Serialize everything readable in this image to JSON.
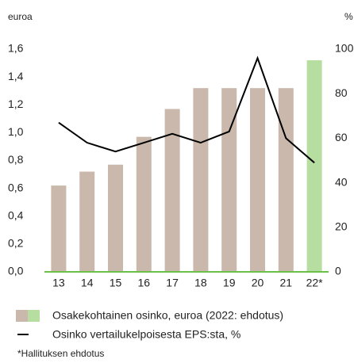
{
  "chart_data": {
    "type": "bar",
    "y_label": "euroa",
    "y2_label": "%",
    "categories": [
      "13",
      "14",
      "15",
      "16",
      "17",
      "18",
      "19",
      "20",
      "21",
      "22*"
    ],
    "series": [
      {
        "name": "Osakekohtainen osinko, euroa (2022: ehdotus)",
        "type": "bar",
        "colors": [
          "#c9b8ab",
          "#c9b8ab",
          "#c9b8ab",
          "#c9b8ab",
          "#c9b8ab",
          "#c9b8ab",
          "#c9b8ab",
          "#c9b8ab",
          "#c9b8ab",
          "#b6dea0"
        ],
        "values": [
          0.62,
          0.72,
          0.77,
          0.97,
          1.17,
          1.32,
          1.32,
          1.32,
          1.32,
          1.52
        ]
      },
      {
        "name": "Osinko vertailukelpoisesta EPS:sta, %",
        "type": "line",
        "axis": "y2",
        "color": "#000000",
        "values": [
          67,
          58,
          54,
          58,
          62,
          58,
          63,
          96,
          60,
          49
        ]
      }
    ],
    "ylim": [
      0,
      1.6
    ],
    "yticks": [
      {
        "value": 0,
        "label": "0,0"
      },
      {
        "value": 0.2,
        "label": "0,2"
      },
      {
        "value": 0.4,
        "label": "0,4"
      },
      {
        "value": 0.6,
        "label": "0,6"
      },
      {
        "value": 0.8,
        "label": "0,8"
      },
      {
        "value": 1.0,
        "label": "1,0"
      },
      {
        "value": 1.2,
        "label": "1,2"
      },
      {
        "value": 1.4,
        "label": "1,4"
      },
      {
        "value": 1.6,
        "label": "1,6"
      }
    ],
    "y2lim": [
      0,
      100
    ],
    "y2ticks": [
      0,
      20,
      40,
      60,
      80,
      100
    ],
    "baseline_color": "#6cc04a",
    "footnote": "*Hallituksen ehdotus"
  }
}
